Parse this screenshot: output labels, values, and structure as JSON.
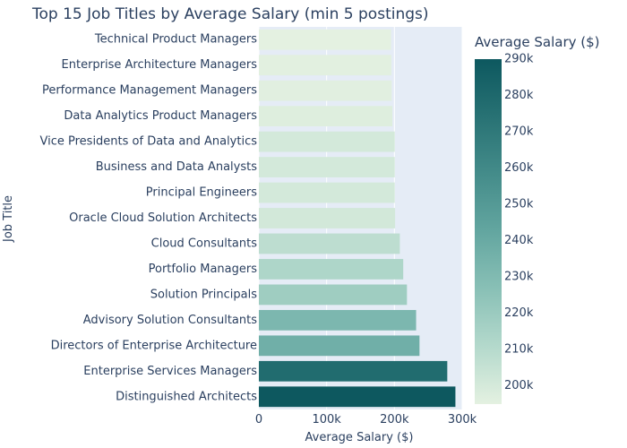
{
  "chart_data": {
    "type": "bar",
    "orientation": "horizontal",
    "title": "Top 15 Job Titles by Average Salary (min 5 postings)",
    "xlabel": "Average Salary ($)",
    "ylabel": "Job Title",
    "xlim": [
      0,
      300000
    ],
    "xticks": [
      0,
      100000,
      200000,
      300000
    ],
    "xtick_labels": [
      "0",
      "100k",
      "200k",
      "300k"
    ],
    "grid": true,
    "categories": [
      "Technical Product Managers",
      "Enterprise Architecture Managers",
      "Performance Management Managers",
      "Data Analytics Product Managers",
      "Vice Presidents of Data and Analytics",
      "Business and Data Analysts",
      "Principal Engineers",
      "Oracle Cloud Solution Architects",
      "Cloud Consultants",
      "Portfolio Managers",
      "Solution Principals",
      "Advisory Solution Consultants",
      "Directors of Enterprise Architecture",
      "Enterprise Services Managers",
      "Distinguished Architects"
    ],
    "values": [
      195000,
      195500,
      196000,
      197000,
      200500,
      200500,
      200500,
      201000,
      208000,
      213000,
      218500,
      232000,
      237000,
      278000,
      290000
    ],
    "colorbar": {
      "title": "Average Salary ($)",
      "range": [
        195000,
        290000
      ],
      "ticks": [
        200000,
        210000,
        220000,
        230000,
        240000,
        250000,
        260000,
        270000,
        280000,
        290000
      ],
      "tick_labels": [
        "200k",
        "210k",
        "220k",
        "230k",
        "240k",
        "250k",
        "260k",
        "270k",
        "280k",
        "290k"
      ],
      "colorscale": [
        "#e4f1e1",
        "#b4d9cc",
        "#89c0b6",
        "#63a6a0",
        "#448c8a",
        "#287274",
        "#0d585f"
      ]
    },
    "plot_background": "#e5ecf6"
  }
}
